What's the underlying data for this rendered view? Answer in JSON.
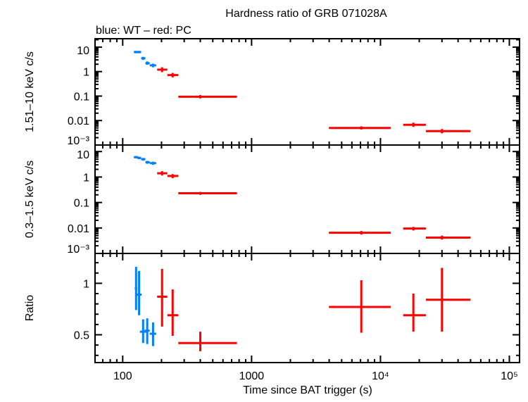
{
  "chart_data": {
    "type": "scatter",
    "title": "Hardness ratio of GRB 071028A",
    "subtitle": "blue: WT – red: PC",
    "xlabel": "Time since BAT trigger (s)",
    "xscale": "log",
    "xlim": [
      61,
      120000
    ],
    "x_ticks": [
      {
        "v": 100,
        "label": "100"
      },
      {
        "v": 1000,
        "label": "1000"
      },
      {
        "v": 10000,
        "label": "10⁴"
      },
      {
        "v": 100000,
        "label": "10⁵"
      }
    ],
    "colors": {
      "WT": "#0080ff",
      "PC": "#ff0000"
    },
    "panels": [
      {
        "ylabel": "1.51–10 keV c/s",
        "yscale": "log",
        "ylim": [
          0.001,
          22
        ],
        "y_ticks": [
          {
            "v": 10,
            "label": "10"
          },
          {
            "v": 1,
            "label": "1"
          },
          {
            "v": 0.1,
            "label": "0.1"
          },
          {
            "v": 0.01,
            "label": "0.01"
          },
          {
            "v": 0.001,
            "label": "10⁻³"
          }
        ],
        "series": [
          {
            "mode": "WT",
            "points": [
              {
                "x": 127,
                "xerr": [
                  122,
                  132
                ],
                "y": 6.3,
                "yerr": [
                  5.6,
                  7.0
                ]
              },
              {
                "x": 134,
                "xerr": [
                  130,
                  139
                ],
                "y": 6.3,
                "yerr": [
                  5.6,
                  7.0
                ]
              },
              {
                "x": 144,
                "xerr": [
                  139,
                  150
                ],
                "y": 3.5,
                "yerr": [
                  3.0,
                  4.0
                ]
              },
              {
                "x": 155,
                "xerr": [
                  150,
                  162
                ],
                "y": 2.2,
                "yerr": [
                  1.9,
                  2.6
                ]
              },
              {
                "x": 172,
                "xerr": [
                  162,
                  182
                ],
                "y": 1.8,
                "yerr": [
                  1.5,
                  2.1
                ]
              }
            ]
          },
          {
            "mode": "PC",
            "points": [
              {
                "x": 202,
                "xerr": [
                  185,
                  222
                ],
                "y": 1.2,
                "yerr": [
                  0.95,
                  1.5
                ]
              },
              {
                "x": 244,
                "xerr": [
                  222,
                  270
                ],
                "y": 0.72,
                "yerr": [
                  0.58,
                  0.88
                ]
              },
              {
                "x": 400,
                "xerr": [
                  270,
                  770
                ],
                "y": 0.094,
                "yerr": [
                  0.08,
                  0.11
                ]
              },
              {
                "x": 7100,
                "xerr": [
                  3980,
                  12000
                ],
                "y": 0.005,
                "yerr": [
                  0.0043,
                  0.0058
                ]
              },
              {
                "x": 18000,
                "xerr": [
                  15000,
                  22500
                ],
                "y": 0.0067,
                "yerr": [
                  0.0055,
                  0.0082
                ]
              },
              {
                "x": 30000,
                "xerr": [
                  22500,
                  50000
                ],
                "y": 0.0037,
                "yerr": [
                  0.003,
                  0.0045
                ]
              }
            ]
          }
        ]
      },
      {
        "ylabel": "0.3–1.5 keV c/s",
        "yscale": "log",
        "ylim": [
          0.001,
          18
        ],
        "y_ticks": [
          {
            "v": 10,
            "label": "10"
          },
          {
            "v": 1,
            "label": "1"
          },
          {
            "v": 0.1,
            "label": "0.1"
          },
          {
            "v": 0.01,
            "label": "0.01"
          },
          {
            "v": 0.001,
            "label": "10⁻³"
          }
        ],
        "series": [
          {
            "mode": "WT",
            "points": [
              {
                "x": 127,
                "xerr": [
                  122,
                  132
                ],
                "y": 6.0,
                "yerr": [
                  5.4,
                  6.6
                ]
              },
              {
                "x": 134,
                "xerr": [
                  130,
                  139
                ],
                "y": 5.6,
                "yerr": [
                  5.0,
                  6.2
                ]
              },
              {
                "x": 144,
                "xerr": [
                  139,
                  150
                ],
                "y": 5.0,
                "yerr": [
                  4.4,
                  5.6
                ]
              },
              {
                "x": 155,
                "xerr": [
                  150,
                  162
                ],
                "y": 3.8,
                "yerr": [
                  3.3,
                  4.3
                ]
              },
              {
                "x": 172,
                "xerr": [
                  162,
                  182
                ],
                "y": 3.5,
                "yerr": [
                  3.0,
                  4.0
                ]
              }
            ]
          },
          {
            "mode": "PC",
            "points": [
              {
                "x": 202,
                "xerr": [
                  185,
                  222
                ],
                "y": 1.4,
                "yerr": [
                  1.15,
                  1.7
                ]
              },
              {
                "x": 244,
                "xerr": [
                  222,
                  270
                ],
                "y": 1.1,
                "yerr": [
                  0.9,
                  1.3
                ]
              },
              {
                "x": 400,
                "xerr": [
                  270,
                  770
                ],
                "y": 0.23,
                "yerr": [
                  0.2,
                  0.26
                ]
              },
              {
                "x": 7100,
                "xerr": [
                  3980,
                  12000
                ],
                "y": 0.0065,
                "yerr": [
                  0.0055,
                  0.0076
                ]
              },
              {
                "x": 18000,
                "xerr": [
                  15000,
                  22500
                ],
                "y": 0.0095,
                "yerr": [
                  0.008,
                  0.011
                ]
              },
              {
                "x": 30000,
                "xerr": [
                  22500,
                  50000
                ],
                "y": 0.0042,
                "yerr": [
                  0.0035,
                  0.005
                ]
              }
            ]
          }
        ]
      },
      {
        "ylabel": "Ratio",
        "yscale": "linear",
        "ylim": [
          0.23,
          1.29
        ],
        "y_ticks": [
          {
            "v": 1,
            "label": "1"
          },
          {
            "v": 0.5,
            "label": "0.5"
          }
        ],
        "series": [
          {
            "mode": "WT",
            "points": [
              {
                "x": 127,
                "xerr": [
                  124,
                  130
                ],
                "y": 0.95,
                "yerr": [
                  0.74,
                  1.16
                ]
              },
              {
                "x": 134,
                "xerr": [
                  128,
                  140
                ],
                "y": 0.89,
                "yerr": [
                  0.69,
                  1.12
                ]
              },
              {
                "x": 144,
                "xerr": [
                  136,
                  152
                ],
                "y": 0.53,
                "yerr": [
                  0.42,
                  0.65
                ]
              },
              {
                "x": 155,
                "xerr": [
                  148,
                  162
                ],
                "y": 0.54,
                "yerr": [
                  0.41,
                  0.66
                ]
              },
              {
                "x": 172,
                "xerr": [
                  162,
                  182
                ],
                "y": 0.51,
                "yerr": [
                  0.39,
                  0.62
                ]
              }
            ]
          },
          {
            "mode": "PC",
            "points": [
              {
                "x": 202,
                "xerr": [
                  185,
                  222
                ],
                "y": 0.87,
                "yerr": [
                  0.58,
                  1.14
                ]
              },
              {
                "x": 244,
                "xerr": [
                  222,
                  270
                ],
                "y": 0.69,
                "yerr": [
                  0.49,
                  0.94
                ]
              },
              {
                "x": 400,
                "xerr": [
                  270,
                  770
                ],
                "y": 0.42,
                "yerr": [
                  0.34,
                  0.53
                ]
              },
              {
                "x": 7100,
                "xerr": [
                  3980,
                  12000
                ],
                "y": 0.77,
                "yerr": [
                  0.52,
                  1.03
                ]
              },
              {
                "x": 18000,
                "xerr": [
                  15000,
                  22500
                ],
                "y": 0.69,
                "yerr": [
                  0.53,
                  0.9
                ]
              },
              {
                "x": 30000,
                "xerr": [
                  22500,
                  50000
                ],
                "y": 0.84,
                "yerr": [
                  0.53,
                  1.15
                ]
              }
            ]
          }
        ]
      }
    ]
  }
}
